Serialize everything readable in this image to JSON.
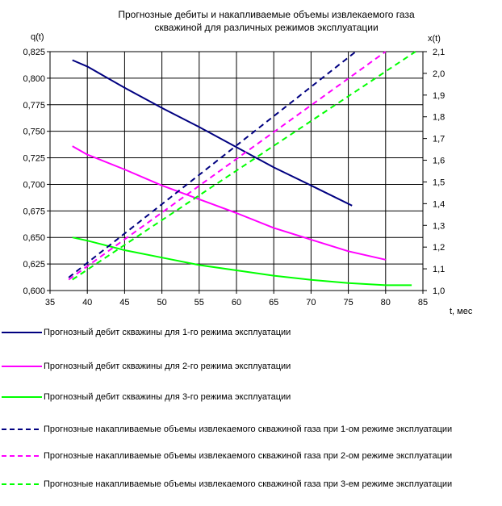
{
  "chart_data": {
    "type": "line",
    "title_lines": [
      "Прогнозные  дебиты и накапливаемые объемы извлекаемого газа",
      "скважиной для различных режимов эксплуатации"
    ],
    "xlabel": "t, мес",
    "ylabel_left": "q(t)",
    "ylabel_right": "x(t)",
    "xlim": [
      35,
      85
    ],
    "ylim_left": [
      0.6,
      0.825
    ],
    "ylim_right": [
      1.0,
      2.1
    ],
    "x_ticks": [
      "35",
      "40",
      "45",
      "50",
      "55",
      "60",
      "65",
      "70",
      "75",
      "80",
      "85"
    ],
    "y_left_ticks": [
      "0,600",
      "0,625",
      "0,650",
      "0,675",
      "0,700",
      "0,725",
      "0,750",
      "0,775",
      "0,800",
      "0,825"
    ],
    "y_right_ticks": [
      "1,0",
      "1,1",
      "1,2",
      "1,3",
      "1,4",
      "1,5",
      "1,6",
      "1,7",
      "1,8",
      "1,9",
      "2,0",
      "2,1"
    ],
    "grid": true,
    "legend_position": "bottom",
    "series": [
      {
        "name": "Прогнозный дебит скважины  для 1-го режима эксплуатации",
        "axis": "left",
        "color": "#000080",
        "dash": "solid",
        "x": [
          38,
          40,
          45,
          50,
          55,
          60,
          65,
          70,
          75.5
        ],
        "y": [
          0.817,
          0.811,
          0.791,
          0.772,
          0.754,
          0.735,
          0.716,
          0.699,
          0.68
        ]
      },
      {
        "name": "Прогнозный дебит скважины  для 2-го режима эксплуатации",
        "axis": "left",
        "color": "#ff00ff",
        "dash": "solid",
        "x": [
          38,
          40,
          45,
          50,
          55,
          60,
          65,
          70,
          75,
          80
        ],
        "y": [
          0.736,
          0.728,
          0.714,
          0.699,
          0.686,
          0.673,
          0.659,
          0.648,
          0.637,
          0.629
        ]
      },
      {
        "name": "Прогнозный дебит скважины  для  3-го режима эксплуатации",
        "axis": "left",
        "color": "#00ff00",
        "dash": "solid",
        "x": [
          38,
          40,
          45,
          50,
          55,
          60,
          65,
          70,
          75,
          80,
          83.5
        ],
        "y": [
          0.65,
          0.647,
          0.638,
          0.631,
          0.624,
          0.619,
          0.614,
          0.61,
          0.607,
          0.605,
          0.605
        ]
      },
      {
        "name": "Прогнозные  накапливаемые объемы  извлекаемого скважиной  газа  при  1-ом режиме эксплуатации",
        "axis": "right",
        "color": "#000080",
        "dash": "dashed",
        "x": [
          37.5,
          76
        ],
        "y": [
          1.06,
          2.1
        ]
      },
      {
        "name": "Прогнозные  накапливаемые объемы  извлекаемого скважиной  газа  при  2-ом режиме эксплуатации",
        "axis": "right",
        "color": "#ff00ff",
        "dash": "dashed",
        "x": [
          37.5,
          80
        ],
        "y": [
          1.05,
          2.1
        ]
      },
      {
        "name": "Прогнозные  накапливаемые объемы  извлекаемого скважиной  газа  при  3-ем режиме эксплуатации",
        "axis": "right",
        "color": "#00ff00",
        "dash": "dashed",
        "x": [
          38,
          84
        ],
        "y": [
          1.05,
          2.1
        ]
      }
    ]
  }
}
